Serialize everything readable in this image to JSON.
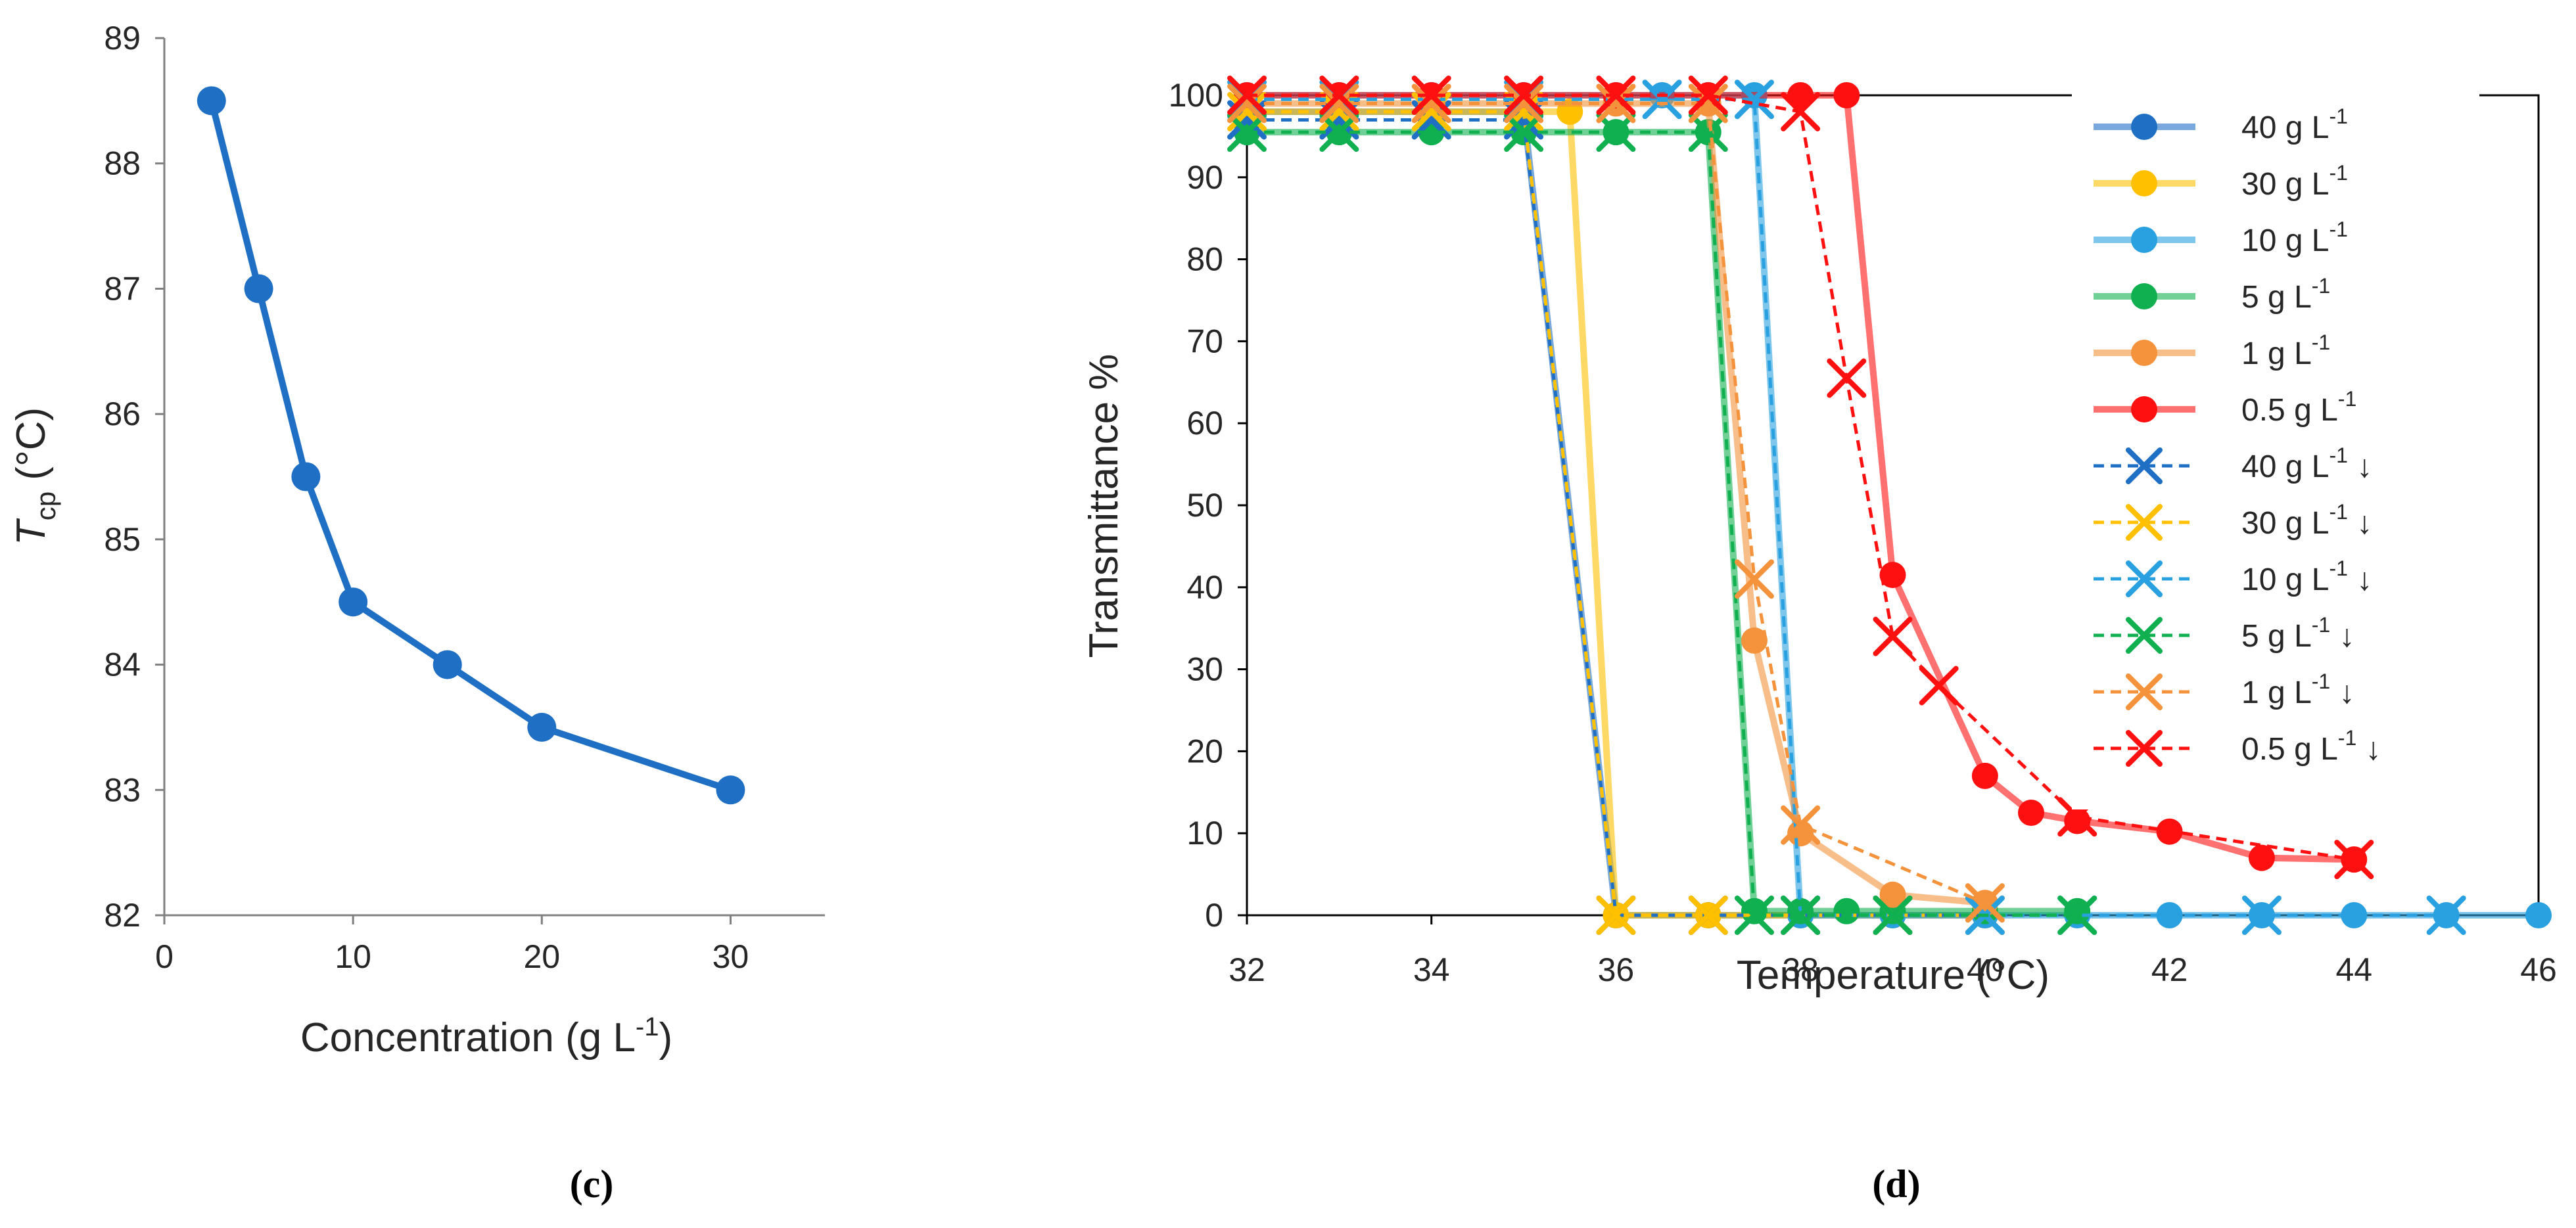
{
  "chart_data": [
    {
      "panel": "c",
      "caption": "(c)",
      "type": "line",
      "xlabel": "Concentration (g L",
      "xlabel_sup": "-1",
      "xlabel_tail": ")",
      "ylabel_main": "T",
      "ylabel_sub": "cp",
      "ylabel_tail": " (°C)",
      "xlim": [
        0,
        35
      ],
      "ylim": [
        82,
        89
      ],
      "xticks": [
        0,
        10,
        20,
        30
      ],
      "yticks": [
        82,
        83,
        84,
        85,
        86,
        87,
        88,
        89
      ],
      "color": "#1f6fc5",
      "x": [
        2.5,
        5,
        7.5,
        10,
        15,
        20,
        30
      ],
      "y": [
        88.5,
        87.0,
        85.5,
        84.5,
        84.0,
        83.5,
        83.0
      ]
    },
    {
      "panel": "d",
      "caption": "(d)",
      "type": "line",
      "xlabel": "Temperature (°C)",
      "ylabel": "Transmittance %",
      "xlim": [
        32,
        46
      ],
      "ylim": [
        0,
        100
      ],
      "xticks": [
        32,
        34,
        36,
        38,
        40,
        42,
        44,
        46
      ],
      "yticks": [
        0,
        10,
        20,
        30,
        40,
        50,
        60,
        70,
        80,
        90,
        100
      ],
      "grid": false,
      "legend_position": "top-right",
      "series": [
        {
          "name": "40 g L",
          "unit_sup": "-1",
          "suffix": "",
          "marker": "circle",
          "style": "solid",
          "color": "#1f6fc5",
          "x": [
            32,
            33,
            34,
            35,
            36,
            37,
            38,
            39,
            40
          ],
          "y": [
            98,
            98,
            98,
            98,
            0,
            0,
            0,
            0,
            0
          ]
        },
        {
          "name": "30 g L",
          "unit_sup": "-1",
          "suffix": "",
          "marker": "circle",
          "style": "solid",
          "color": "#ffc000",
          "x": [
            32,
            33,
            34,
            35,
            35.5,
            36,
            37,
            38,
            39,
            40
          ],
          "y": [
            98,
            98,
            98,
            98,
            98,
            0,
            0,
            0,
            0,
            0
          ]
        },
        {
          "name": "10 g L",
          "unit_sup": "-1",
          "suffix": "",
          "marker": "circle",
          "style": "solid",
          "color": "#29a0e0",
          "x": [
            32,
            33,
            34,
            35,
            36,
            36.5,
            37,
            37.5,
            38,
            39,
            40,
            41,
            42,
            43,
            44,
            45,
            46
          ],
          "y": [
            100,
            100,
            100,
            100,
            100,
            100,
            100,
            100,
            0,
            0,
            0,
            0,
            0,
            0,
            0,
            0,
            0
          ]
        },
        {
          "name": "5 g L",
          "unit_sup": "-1",
          "suffix": "",
          "marker": "circle",
          "style": "solid",
          "color": "#10b050",
          "x": [
            32,
            33,
            34,
            35,
            36,
            37,
            37.5,
            38,
            38.5,
            39,
            40,
            41
          ],
          "y": [
            95.5,
            95.5,
            95.5,
            95.5,
            95.5,
            95.5,
            0.5,
            0.5,
            0.5,
            0.5,
            0.5,
            0.5
          ]
        },
        {
          "name": "1 g L",
          "unit_sup": "-1",
          "suffix": "",
          "marker": "circle",
          "style": "solid",
          "color": "#f4933c",
          "x": [
            32,
            33,
            34,
            35,
            36,
            37,
            37.5,
            38,
            39,
            40
          ],
          "y": [
            99,
            99,
            99,
            99,
            99,
            99,
            33.5,
            10,
            2.5,
            1.5
          ]
        },
        {
          "name": "0.5 g L",
          "unit_sup": "-1",
          "suffix": "",
          "marker": "circle",
          "style": "solid",
          "color": "#ff1010",
          "x": [
            32,
            33,
            34,
            35,
            36,
            37,
            38,
            38.5,
            39,
            40,
            40.5,
            41,
            42,
            43,
            44
          ],
          "y": [
            100,
            100,
            100,
            100,
            100,
            100,
            100,
            100,
            41.5,
            17,
            12.5,
            11.5,
            10.2,
            7,
            6.8
          ]
        },
        {
          "name": "40 g L",
          "unit_sup": "-1",
          "suffix": " ↓",
          "marker": "x",
          "style": "dashed",
          "color": "#1f6fc5",
          "x": [
            32,
            33,
            34,
            35,
            36,
            37,
            38,
            39,
            40
          ],
          "y": [
            97,
            97,
            97,
            97,
            0,
            0,
            0,
            0,
            0
          ]
        },
        {
          "name": "30 g L",
          "unit_sup": "-1",
          "suffix": " ↓",
          "marker": "x",
          "style": "dashed",
          "color": "#ffc000",
          "x": [
            32,
            33,
            34,
            35,
            36,
            37,
            38,
            39,
            40
          ],
          "y": [
            98,
            98,
            98,
            98,
            0,
            0,
            0,
            0,
            0
          ]
        },
        {
          "name": "10 g L",
          "unit_sup": "-1",
          "suffix": " ↓",
          "marker": "x",
          "style": "dashed",
          "color": "#29a0e0",
          "x": [
            32,
            33,
            35,
            36.5,
            37.5,
            38,
            40,
            41,
            43,
            45
          ],
          "y": [
            99.5,
            99.5,
            99.5,
            99.5,
            99.5,
            0,
            0,
            0,
            0,
            0
          ]
        },
        {
          "name": "5 g L",
          "unit_sup": "-1",
          "suffix": " ↓",
          "marker": "x",
          "style": "dashed",
          "color": "#10b050",
          "x": [
            32,
            33,
            35,
            36,
            37,
            37.5,
            38,
            39,
            41
          ],
          "y": [
            95.5,
            95.5,
            95.5,
            95.5,
            95.5,
            0,
            0,
            0,
            0
          ]
        },
        {
          "name": "1 g L",
          "unit_sup": "-1",
          "suffix": " ↓",
          "marker": "x",
          "style": "dashed",
          "color": "#f4933c",
          "x": [
            32,
            33,
            34,
            35,
            36,
            37,
            37.5,
            38,
            40
          ],
          "y": [
            99,
            99,
            99,
            99,
            99,
            99,
            41,
            11,
            1.5
          ]
        },
        {
          "name": "0.5 g L",
          "unit_sup": "-1",
          "suffix": " ↓",
          "marker": "x",
          "style": "dashed",
          "color": "#ff1010",
          "x": [
            32,
            33,
            34,
            35,
            36,
            37,
            38,
            38.5,
            39,
            39.5,
            41,
            44
          ],
          "y": [
            100,
            100,
            100,
            100,
            100,
            100,
            98,
            65.5,
            34,
            28,
            12,
            6.8
          ]
        }
      ]
    }
  ]
}
